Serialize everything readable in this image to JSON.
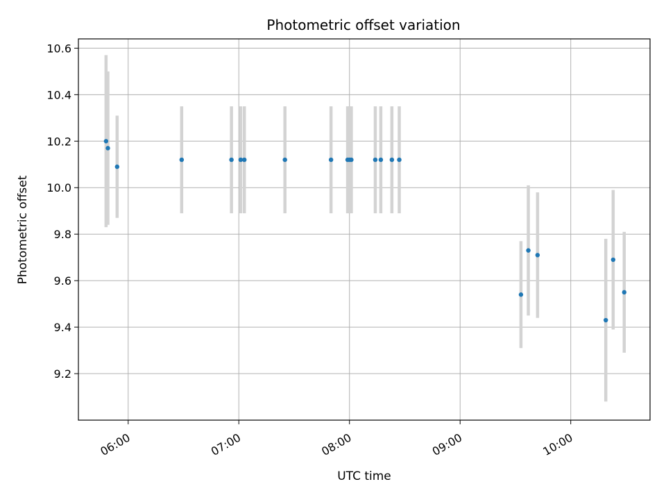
{
  "chart_data": {
    "type": "scatter",
    "title": "Photometric offset variation",
    "xlabel": "UTC time",
    "ylabel": "Photometric offset",
    "x_format": "time HH:MM (UTC)",
    "xlim": [
      "05:33",
      "10:43"
    ],
    "ylim": [
      9.0,
      10.64
    ],
    "x_ticks": [
      "06:00",
      "07:00",
      "08:00",
      "09:00",
      "10:00"
    ],
    "y_ticks": [
      9.2,
      9.4,
      9.6,
      9.8,
      10.0,
      10.2,
      10.4,
      10.6
    ],
    "grid": true,
    "marker_color": "#1f77b4",
    "errorbar_color": "#d3d3d3",
    "points": [
      {
        "x": "05:48",
        "y": 10.2,
        "err": 0.37
      },
      {
        "x": "05:49",
        "y": 10.17,
        "err": 0.33
      },
      {
        "x": "05:54",
        "y": 10.09,
        "err": 0.22
      },
      {
        "x": "06:29",
        "y": 10.12,
        "err": 0.23
      },
      {
        "x": "06:56",
        "y": 10.12,
        "err": 0.23
      },
      {
        "x": "07:01",
        "y": 10.12,
        "err": 0.23
      },
      {
        "x": "07:03",
        "y": 10.12,
        "err": 0.23
      },
      {
        "x": "07:25",
        "y": 10.12,
        "err": 0.23
      },
      {
        "x": "07:50",
        "y": 10.12,
        "err": 0.23
      },
      {
        "x": "07:59",
        "y": 10.12,
        "err": 0.23
      },
      {
        "x": "08:00",
        "y": 10.12,
        "err": 0.23
      },
      {
        "x": "08:01",
        "y": 10.12,
        "err": 0.23
      },
      {
        "x": "08:14",
        "y": 10.12,
        "err": 0.23
      },
      {
        "x": "08:17",
        "y": 10.12,
        "err": 0.23
      },
      {
        "x": "08:23",
        "y": 10.12,
        "err": 0.23
      },
      {
        "x": "08:27",
        "y": 10.12,
        "err": 0.23
      },
      {
        "x": "09:33",
        "y": 9.54,
        "err": 0.23
      },
      {
        "x": "09:37",
        "y": 9.73,
        "err": 0.28
      },
      {
        "x": "09:42",
        "y": 9.71,
        "err": 0.27
      },
      {
        "x": "10:19",
        "y": 9.43,
        "err": 0.35
      },
      {
        "x": "10:23",
        "y": 9.69,
        "err": 0.3
      },
      {
        "x": "10:29",
        "y": 9.55,
        "err": 0.26
      }
    ]
  }
}
